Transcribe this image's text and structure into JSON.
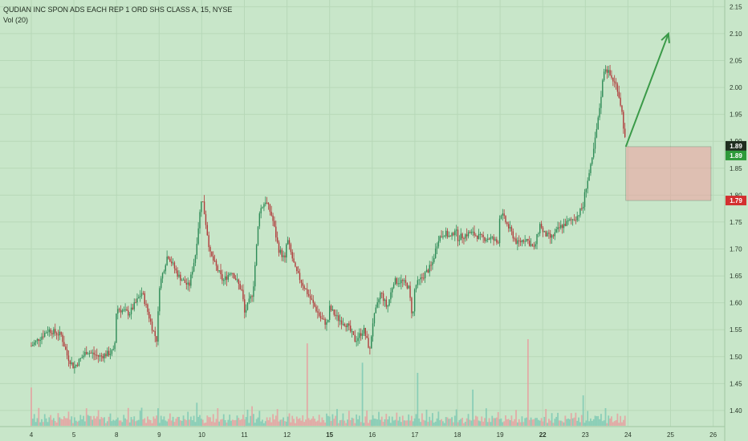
{
  "header": {
    "symbol_line": "QUDIAN INC SPON ADS EACH REP 1 ORD SHS CLASS A, 15, NYSE",
    "volume_line": "Vol (20)"
  },
  "colors": {
    "background": "#c8e6c9",
    "grid": "#b7d8b8",
    "up": "#2e8b57",
    "down": "#b03a3a",
    "up_volume": "#7fc9b4",
    "down_volume": "#e6a0a0",
    "arrow": "#3a9a48",
    "stop_zone": "#f0a0a0",
    "current_tag": "#2f9a3a",
    "stop_tag": "#d32f2f",
    "dark_tag": "#1f2e1f"
  },
  "price_tags": {
    "last_price_dark": "1.89",
    "last_price_green": "1.89",
    "stop_price": "1.79"
  },
  "chart_data": {
    "type": "candlestick",
    "title": "QUDIAN INC SPON ADS EACH REP 1 ORD SHS CLASS A, 15, NYSE",
    "indicator": "Vol (20)",
    "xlabel": "",
    "ylabel": "",
    "ylim": [
      1.385,
      2.155
    ],
    "y_ticks": [
      "1.40",
      "1.45",
      "1.50",
      "1.55",
      "1.60",
      "1.65",
      "1.70",
      "1.75",
      "1.80",
      "1.85",
      "1.90",
      "1.95",
      "2.00",
      "2.05",
      "2.10",
      "2.15"
    ],
    "x_ticks": [
      "4",
      "5",
      "8",
      "9",
      "10",
      "11",
      "12",
      "15",
      "16",
      "17",
      "18",
      "19",
      "22",
      "23",
      "24",
      "25",
      "26"
    ],
    "session_close_path": [
      [
        3.0,
        1.52
      ],
      [
        3.4,
        1.55
      ],
      [
        3.7,
        1.54
      ],
      [
        3.85,
        1.5
      ],
      [
        4.0,
        1.48
      ],
      [
        4.3,
        1.51
      ],
      [
        4.6,
        1.5
      ],
      [
        4.95,
        1.51
      ],
      [
        5.0,
        1.59
      ],
      [
        5.3,
        1.58
      ],
      [
        5.6,
        1.62
      ],
      [
        5.85,
        1.55
      ],
      [
        5.95,
        1.53
      ],
      [
        6.0,
        1.63
      ],
      [
        6.2,
        1.69
      ],
      [
        6.45,
        1.65
      ],
      [
        6.7,
        1.63
      ],
      [
        6.85,
        1.69
      ],
      [
        7.0,
        1.8
      ],
      [
        7.2,
        1.69
      ],
      [
        7.5,
        1.64
      ],
      [
        7.7,
        1.66
      ],
      [
        7.95,
        1.62
      ],
      [
        8.0,
        1.58
      ],
      [
        8.2,
        1.62
      ],
      [
        8.35,
        1.77
      ],
      [
        8.5,
        1.79
      ],
      [
        8.65,
        1.76
      ],
      [
        8.8,
        1.7
      ],
      [
        8.95,
        1.68
      ],
      [
        9.0,
        1.72
      ],
      [
        9.2,
        1.66
      ],
      [
        9.4,
        1.63
      ],
      [
        9.6,
        1.6
      ],
      [
        9.8,
        1.57
      ],
      [
        9.95,
        1.56
      ],
      [
        10.0,
        1.59
      ],
      [
        10.2,
        1.57
      ],
      [
        10.4,
        1.56
      ],
      [
        10.6,
        1.53
      ],
      [
        10.8,
        1.55
      ],
      [
        10.95,
        1.51
      ],
      [
        11.0,
        1.56
      ],
      [
        11.2,
        1.62
      ],
      [
        11.35,
        1.59
      ],
      [
        11.5,
        1.64
      ],
      [
        11.7,
        1.64
      ],
      [
        11.85,
        1.63
      ],
      [
        11.95,
        1.57
      ],
      [
        12.0,
        1.63
      ],
      [
        12.2,
        1.65
      ],
      [
        12.4,
        1.67
      ],
      [
        12.55,
        1.72
      ],
      [
        12.7,
        1.73
      ],
      [
        12.85,
        1.72
      ],
      [
        12.95,
        1.74
      ],
      [
        13.0,
        1.72
      ],
      [
        13.3,
        1.73
      ],
      [
        13.6,
        1.72
      ],
      [
        13.8,
        1.72
      ],
      [
        13.95,
        1.71
      ],
      [
        14.0,
        1.77
      ],
      [
        14.2,
        1.74
      ],
      [
        14.4,
        1.71
      ],
      [
        14.6,
        1.72
      ],
      [
        14.8,
        1.7
      ],
      [
        14.95,
        1.75
      ],
      [
        15.0,
        1.73
      ],
      [
        15.2,
        1.72
      ],
      [
        15.4,
        1.74
      ],
      [
        15.6,
        1.75
      ],
      [
        15.8,
        1.76
      ],
      [
        15.95,
        1.78
      ],
      [
        16.0,
        1.81
      ],
      [
        16.15,
        1.86
      ],
      [
        16.3,
        1.94
      ],
      [
        16.45,
        2.04
      ],
      [
        16.6,
        2.02
      ],
      [
        16.75,
        2.0
      ],
      [
        16.85,
        1.96
      ],
      [
        16.95,
        1.89
      ]
    ],
    "volume_pattern": [
      2,
      1,
      3,
      1,
      2,
      5,
      1,
      2,
      1,
      3,
      1,
      1,
      2,
      4,
      1,
      2,
      1,
      1,
      3,
      2
    ],
    "annotations": {
      "projection_arrow": {
        "from": [
          16.95,
          1.89
        ],
        "to": [
          17.95,
          2.1
        ]
      },
      "stop_zone": {
        "x": [
          16.95,
          18.95
        ],
        "y": [
          1.79,
          1.89
        ]
      }
    }
  }
}
